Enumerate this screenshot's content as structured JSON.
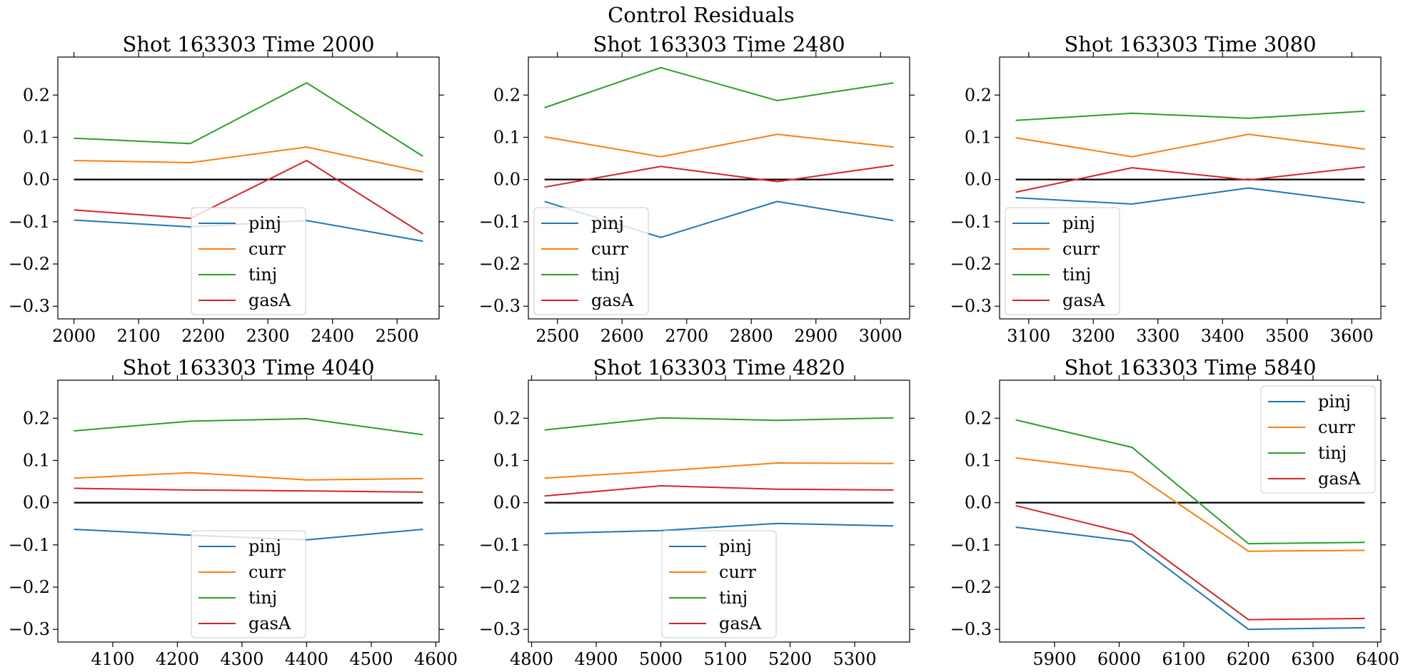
{
  "chart_data": {
    "suptitle": "Control Residuals",
    "series_names": [
      "pinj",
      "curr",
      "tinj",
      "gasA"
    ],
    "colors": {
      "pinj": "#1f77b4",
      "curr": "#ff7f0e",
      "tinj": "#2ca02c",
      "gasA": "#d62728",
      "zero_line": "#000000"
    },
    "ylim": [
      -0.33,
      0.29
    ],
    "yticks": [
      -0.3,
      -0.2,
      -0.1,
      0.0,
      0.1,
      0.2
    ],
    "ytick_labels": [
      "−0.3",
      "−0.2",
      "−0.1",
      "0.0",
      "0.1",
      "0.2"
    ],
    "panels": [
      {
        "type": "line",
        "title": "Shot 163303   Time 2000",
        "x": [
          2000,
          2180,
          2360,
          2540
        ],
        "xlim": [
          1975,
          2565
        ],
        "xticks": [
          2000,
          2100,
          2200,
          2300,
          2400,
          2500
        ],
        "legend_loc": "lower center",
        "zero_line": true,
        "series": [
          {
            "name": "pinj",
            "values": [
              -0.096,
              -0.112,
              -0.097,
              -0.146
            ]
          },
          {
            "name": "curr",
            "values": [
              0.045,
              0.04,
              0.077,
              0.018
            ]
          },
          {
            "name": "tinj",
            "values": [
              0.098,
              0.085,
              0.229,
              0.055
            ]
          },
          {
            "name": "gasA",
            "values": [
              -0.072,
              -0.092,
              0.045,
              -0.129
            ]
          }
        ]
      },
      {
        "type": "line",
        "title": "Shot 163303   Time 2480",
        "x": [
          2480,
          2660,
          2840,
          3020
        ],
        "xlim": [
          2455,
          3045
        ],
        "xticks": [
          2500,
          2600,
          2700,
          2800,
          2900,
          3000
        ],
        "legend_loc": "lower left",
        "zero_line": true,
        "series": [
          {
            "name": "pinj",
            "values": [
              -0.052,
              -0.137,
              -0.052,
              -0.097
            ]
          },
          {
            "name": "curr",
            "values": [
              0.101,
              0.054,
              0.107,
              0.077
            ]
          },
          {
            "name": "tinj",
            "values": [
              0.17,
              0.265,
              0.187,
              0.229
            ]
          },
          {
            "name": "gasA",
            "values": [
              -0.018,
              0.031,
              -0.005,
              0.034
            ]
          }
        ]
      },
      {
        "type": "line",
        "title": "Shot 163303   Time 3080",
        "x": [
          3080,
          3260,
          3440,
          3620
        ],
        "xlim": [
          3055,
          3645
        ],
        "xticks": [
          3100,
          3200,
          3300,
          3400,
          3500,
          3600
        ],
        "legend_loc": "lower left",
        "zero_line": true,
        "series": [
          {
            "name": "pinj",
            "values": [
              -0.043,
              -0.058,
              -0.02,
              -0.055
            ]
          },
          {
            "name": "curr",
            "values": [
              0.099,
              0.054,
              0.107,
              0.072
            ]
          },
          {
            "name": "tinj",
            "values": [
              0.14,
              0.157,
              0.145,
              0.162
            ]
          },
          {
            "name": "gasA",
            "values": [
              -0.03,
              0.028,
              -0.001,
              0.03
            ]
          }
        ]
      },
      {
        "type": "line",
        "title": "Shot 163303   Time 4040",
        "x": [
          4040,
          4220,
          4400,
          4580
        ],
        "xlim": [
          4015,
          4605
        ],
        "xticks": [
          4100,
          4200,
          4300,
          4400,
          4500,
          4600
        ],
        "legend_loc": "lower center",
        "zero_line": true,
        "series": [
          {
            "name": "pinj",
            "values": [
              -0.063,
              -0.077,
              -0.088,
              -0.063
            ]
          },
          {
            "name": "curr",
            "values": [
              0.058,
              0.071,
              0.054,
              0.057
            ]
          },
          {
            "name": "tinj",
            "values": [
              0.17,
              0.193,
              0.199,
              0.161
            ]
          },
          {
            "name": "gasA",
            "values": [
              0.034,
              0.03,
              0.028,
              0.025
            ]
          }
        ]
      },
      {
        "type": "line",
        "title": "Shot 163303   Time 4820",
        "x": [
          4820,
          5000,
          5180,
          5360
        ],
        "xlim": [
          4795,
          5385
        ],
        "xticks": [
          4800,
          4900,
          5000,
          5100,
          5200,
          5300
        ],
        "legend_loc": "lower center",
        "zero_line": true,
        "series": [
          {
            "name": "pinj",
            "values": [
              -0.073,
              -0.066,
              -0.049,
              -0.055
            ]
          },
          {
            "name": "curr",
            "values": [
              0.058,
              0.075,
              0.094,
              0.093
            ]
          },
          {
            "name": "tinj",
            "values": [
              0.172,
              0.201,
              0.195,
              0.201
            ]
          },
          {
            "name": "gasA",
            "values": [
              0.016,
              0.04,
              0.032,
              0.03
            ]
          }
        ]
      },
      {
        "type": "line",
        "title": "Shot 163303   Time 5840",
        "x": [
          5840,
          6020,
          6200,
          6380
        ],
        "xlim": [
          5815,
          6405
        ],
        "xticks": [
          5900,
          6000,
          6100,
          6200,
          6300,
          6400
        ],
        "legend_loc": "upper right",
        "zero_line": true,
        "series": [
          {
            "name": "pinj",
            "values": [
              -0.058,
              -0.092,
              -0.3,
              -0.296
            ]
          },
          {
            "name": "curr",
            "values": [
              0.106,
              0.072,
              -0.115,
              -0.113
            ]
          },
          {
            "name": "tinj",
            "values": [
              0.196,
              0.131,
              -0.097,
              -0.094
            ]
          },
          {
            "name": "gasA",
            "values": [
              -0.007,
              -0.075,
              -0.277,
              -0.274
            ]
          }
        ]
      }
    ]
  }
}
